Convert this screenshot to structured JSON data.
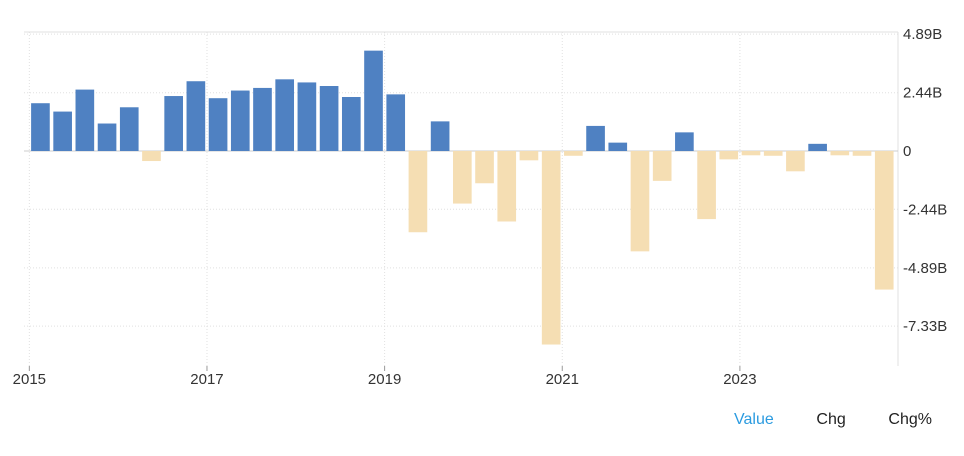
{
  "chart_data": {
    "type": "bar",
    "title": "",
    "xlabel": "",
    "ylabel": "",
    "ylim": [
      -8.3,
      5.1
    ],
    "y_ticks": [
      4.89,
      2.44,
      0,
      -2.44,
      -4.89,
      -7.33
    ],
    "y_tick_labels": [
      "4.89B",
      "2.44B",
      "0",
      "-2.44B",
      "-4.89B",
      "-7.33B"
    ],
    "x_ticks": [
      2015,
      2017,
      2019,
      2021,
      2023
    ],
    "x_tick_labels": [
      "2015",
      "2017",
      "2019",
      "2021",
      "2023"
    ],
    "x_range": [
      2014.94,
      2024.78
    ],
    "grid": true,
    "colors": {
      "positive": "#4f81c2",
      "negative": "#f5deb3",
      "grid": "#e0e0e0",
      "baseline": "#cccccc"
    },
    "series": [
      {
        "x": [
          2015.125,
          2015.375,
          2015.625,
          2015.875,
          2016.125,
          2016.375,
          2016.625,
          2016.875,
          2017.125,
          2017.375,
          2017.625,
          2017.875,
          2018.125,
          2018.375,
          2018.625,
          2018.875,
          2019.125,
          2019.375,
          2019.625,
          2019.875,
          2020.125,
          2020.375,
          2020.625,
          2020.875,
          2021.125,
          2021.375,
          2021.625,
          2021.875,
          2022.125,
          2022.375,
          2022.625,
          2022.875,
          2023.125,
          2023.375,
          2023.625,
          2023.875,
          2024.125,
          2024.375,
          2024.625
        ],
        "values": [
          2.0,
          1.65,
          2.57,
          1.15,
          1.83,
          -0.42,
          2.3,
          2.92,
          2.21,
          2.53,
          2.64,
          3.0,
          2.87,
          2.72,
          2.26,
          4.2,
          2.37,
          -3.4,
          1.24,
          -2.2,
          -1.35,
          -2.95,
          -0.39,
          -8.1,
          -0.2,
          1.05,
          0.35,
          -4.2,
          -1.25,
          0.78,
          -2.85,
          -0.35,
          -0.18,
          -0.2,
          -0.85,
          0.3,
          -0.18,
          -0.2,
          -5.8
        ]
      }
    ]
  },
  "tabs": [
    {
      "label": "Value",
      "active": true
    },
    {
      "label": "Chg",
      "active": false
    },
    {
      "label": "Chg%",
      "active": false
    }
  ]
}
